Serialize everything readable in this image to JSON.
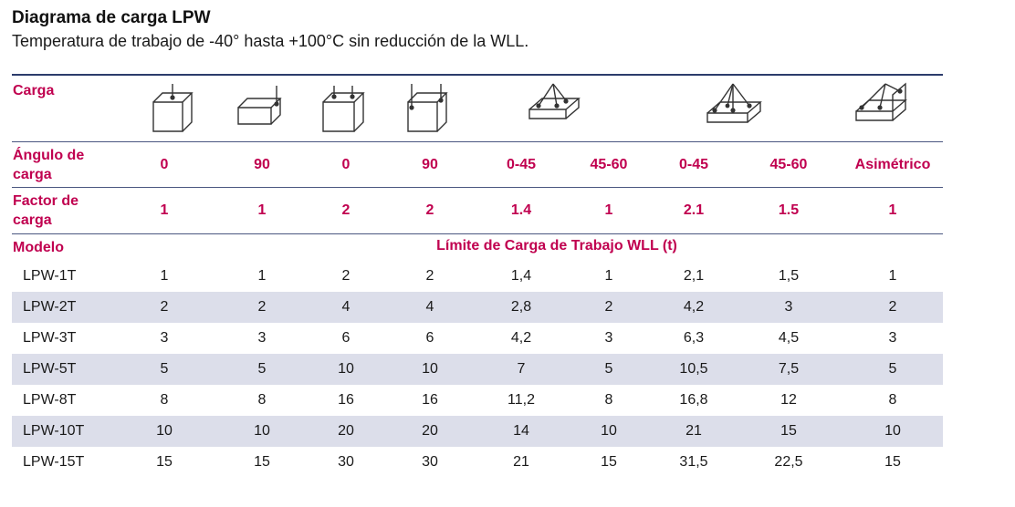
{
  "title": "Diagrama de carga LPW",
  "subtitle": "Temperatura de trabajo de -40° hasta +100°C sin reducción de la WLL.",
  "labels": {
    "carga": "Carga",
    "angulo_l1": "Ángulo de",
    "angulo_l2": "carga",
    "factor_l1": "Factor de",
    "factor_l2": "carga",
    "modelo": "Modelo",
    "wll_header": "Límite de Carga de Trabajo WLL (t)"
  },
  "icons": [
    "box-vertical-lift-icon",
    "box-side-lift-icon",
    "box-two-leg-lift-icon",
    "box-two-leg-angle-icon",
    "plate-three-leg-icon",
    "plate-four-leg-icon",
    "plate-asymmetric-lift-icon"
  ],
  "angles": [
    "0",
    "90",
    "0",
    "90",
    "0-45",
    "45-60",
    "0-45",
    "45-60",
    "Asimétrico"
  ],
  "factors": [
    "1",
    "1",
    "2",
    "2",
    "1.4",
    "1",
    "2.1",
    "1.5",
    "1"
  ],
  "rows": [
    {
      "model": "LPW-1T",
      "values": [
        "1",
        "1",
        "2",
        "2",
        "1,4",
        "1",
        "2,1",
        "1,5",
        "1"
      ]
    },
    {
      "model": "LPW-2T",
      "values": [
        "2",
        "2",
        "4",
        "4",
        "2,8",
        "2",
        "4,2",
        "3",
        "2"
      ]
    },
    {
      "model": "LPW-3T",
      "values": [
        "3",
        "3",
        "6",
        "6",
        "4,2",
        "3",
        "6,3",
        "4,5",
        "3"
      ]
    },
    {
      "model": "LPW-5T",
      "values": [
        "5",
        "5",
        "10",
        "10",
        "7",
        "5",
        "10,5",
        "7,5",
        "5"
      ]
    },
    {
      "model": "LPW-8T",
      "values": [
        "8",
        "8",
        "16",
        "16",
        "11,2",
        "8",
        "16,8",
        "12",
        "8"
      ]
    },
    {
      "model": "LPW-10T",
      "values": [
        "10",
        "10",
        "20",
        "20",
        "14",
        "10",
        "21",
        "15",
        "10"
      ]
    },
    {
      "model": "LPW-15T",
      "values": [
        "15",
        "15",
        "30",
        "30",
        "21",
        "15",
        "31,5",
        "22,5",
        "15"
      ]
    }
  ]
}
